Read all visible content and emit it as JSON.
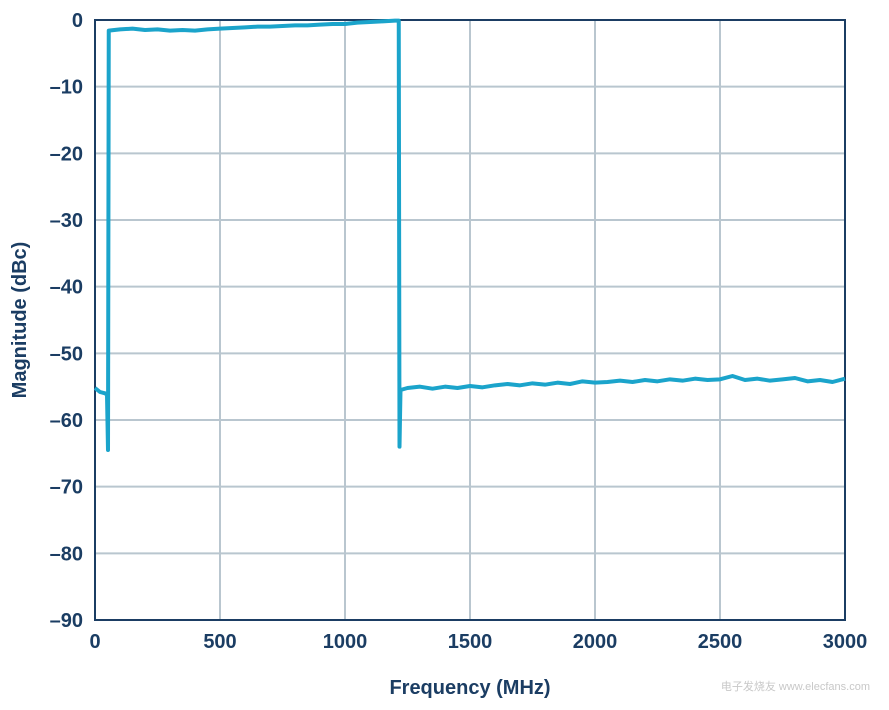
{
  "chart_data": {
    "type": "line",
    "xlabel": "Frequency (MHz)",
    "ylabel": "Magnitude (dBc)",
    "x": [
      0,
      20,
      40,
      48,
      52,
      55,
      100,
      150,
      200,
      250,
      300,
      350,
      400,
      450,
      500,
      550,
      600,
      650,
      700,
      750,
      800,
      850,
      900,
      950,
      1000,
      1050,
      1100,
      1150,
      1200,
      1215,
      1218,
      1222,
      1250,
      1300,
      1350,
      1400,
      1450,
      1500,
      1550,
      1600,
      1650,
      1700,
      1750,
      1800,
      1850,
      1900,
      1950,
      2000,
      2050,
      2100,
      2150,
      2200,
      2250,
      2300,
      2350,
      2400,
      2450,
      2500,
      2550,
      2600,
      2650,
      2700,
      2750,
      2800,
      2850,
      2900,
      2950,
      3000
    ],
    "series": [
      {
        "name": "Magnitude",
        "color": "#1ba4cb",
        "values": [
          -55.2,
          -55.8,
          -56,
          -56.2,
          -64.5,
          -1.6,
          -1.4,
          -1.3,
          -1.5,
          -1.4,
          -1.6,
          -1.5,
          -1.6,
          -1.4,
          -1.3,
          -1.2,
          -1.1,
          -1.0,
          -1.0,
          -0.9,
          -0.8,
          -0.8,
          -0.7,
          -0.6,
          -0.6,
          -0.4,
          -0.3,
          -0.2,
          -0.1,
          -0.1,
          -64,
          -55.5,
          -55.2,
          -55.0,
          -55.3,
          -55.0,
          -55.2,
          -54.9,
          -55.1,
          -54.8,
          -54.6,
          -54.8,
          -54.5,
          -54.7,
          -54.4,
          -54.6,
          -54.2,
          -54.4,
          -54.3,
          -54.1,
          -54.3,
          -54.0,
          -54.2,
          -53.9,
          -54.1,
          -53.8,
          -54.0,
          -53.9,
          -53.4,
          -54.0,
          -53.8,
          -54.1,
          -53.9,
          -53.7,
          -54.2,
          -54.0,
          -54.3,
          -53.8
        ]
      }
    ],
    "xlim": [
      0,
      3000
    ],
    "xticks": [
      0,
      500,
      1000,
      1500,
      2000,
      2500,
      3000
    ],
    "ylim": [
      -90,
      0
    ],
    "yticks": [
      0,
      {
        "value": -10,
        "label": "–10"
      },
      {
        "value": -20,
        "label": "–20"
      },
      {
        "value": -30,
        "label": "–30"
      },
      {
        "value": -40,
        "label": "–40"
      },
      {
        "value": -50,
        "label": "–50"
      },
      {
        "value": -60,
        "label": "–60"
      },
      {
        "value": -70,
        "label": "–70"
      },
      {
        "value": -80,
        "label": "–80"
      },
      {
        "value": -90,
        "label": "–90"
      }
    ],
    "grid": true,
    "watermark": "电子发烧友 www.elecfans.com"
  }
}
